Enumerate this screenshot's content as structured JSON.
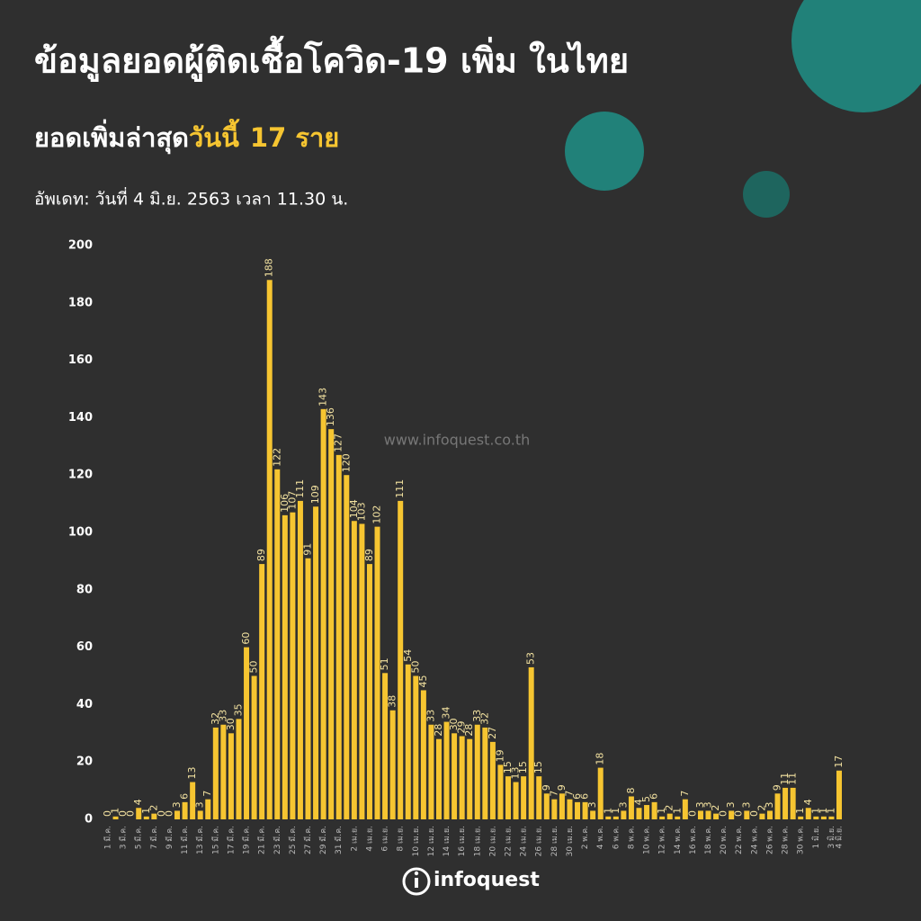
{
  "header": {
    "title": "ข้อมูลยอดผู้ติดเชื้อโควิด-19 เพิ่ม ในไทย",
    "subtitle_prefix": "ยอดเพิ่มล่าสุด",
    "subtitle_highlight": "วันนี้",
    "subtitle_count": "17 ราย",
    "update": "อัพเดท: วันที่  4 มิ.ย. 2563 เวลา 11.30 น."
  },
  "watermark": "www.infoquest.co.th",
  "logo": "infoquest",
  "chart_data": {
    "type": "bar",
    "color": "#f6c531",
    "grid": false,
    "ylim": [
      0,
      200
    ],
    "yticks": [
      0,
      20,
      40,
      60,
      80,
      100,
      120,
      140,
      160,
      180,
      200
    ],
    "categories": [
      "1 มี.ค.",
      null,
      "3 มี.ค.",
      null,
      "5 มี.ค.",
      null,
      "7 มี.ค.",
      null,
      "9 มี.ค.",
      null,
      "11 มี.ค.",
      null,
      "13 มี.ค.",
      null,
      "15 มี.ค.",
      null,
      "17 มี.ค.",
      null,
      "19 มี.ค.",
      null,
      "21 มี.ค.",
      null,
      "23 มี.ค.",
      null,
      "25 มี.ค.",
      null,
      "27 มี.ค.",
      null,
      "29 มี.ค.",
      null,
      "31 มี.ค.",
      null,
      "2 เม.ย.",
      null,
      "4 เม.ย.",
      null,
      "6 เม.ย.",
      null,
      "8 เม.ย.",
      null,
      "10 เม.ย.",
      null,
      "12 เม.ย.",
      null,
      "14 เม.ย.",
      null,
      "16 เม.ย.",
      null,
      "18 เม.ย.",
      null,
      "20 เม.ย.",
      null,
      "22 เม.ย.",
      null,
      "24 เม.ย.",
      null,
      "26 เม.ย.",
      null,
      "28 เม.ย.",
      null,
      "30 เม.ย.",
      null,
      "2 พ.ค.",
      null,
      "4 พ.ค.",
      null,
      "6 พ.ค.",
      null,
      "8 พ.ค.",
      null,
      "10 พ.ค.",
      null,
      "12 พ.ค.",
      null,
      "14 พ.ค.",
      null,
      "16 พ.ค.",
      null,
      "18 พ.ค.",
      null,
      "20 พ.ค.",
      null,
      "22 พ.ค.",
      null,
      "24 พ.ค.",
      null,
      "26 พ.ค.",
      null,
      "28 พ.ค.",
      null,
      "30 พ.ค.",
      null,
      "1 มิ.ย.",
      null,
      "3 มิ.ย.",
      "4 มิ.ย."
    ],
    "values": [
      0,
      1,
      0,
      0,
      4,
      1,
      2,
      0,
      0,
      3,
      6,
      13,
      3,
      7,
      32,
      33,
      30,
      35,
      60,
      50,
      89,
      188,
      122,
      106,
      107,
      111,
      91,
      109,
      143,
      136,
      127,
      120,
      104,
      103,
      89,
      102,
      51,
      38,
      111,
      54,
      50,
      45,
      33,
      28,
      34,
      30,
      29,
      28,
      33,
      32,
      27,
      19,
      15,
      13,
      15,
      53,
      15,
      9,
      7,
      9,
      7,
      6,
      6,
      3,
      18,
      1,
      1,
      3,
      8,
      4,
      5,
      6,
      1,
      2,
      1,
      7,
      0,
      3,
      3,
      2,
      0,
      3,
      0,
      3,
      0,
      2,
      3,
      9,
      11,
      11,
      1,
      4,
      1,
      1,
      1,
      17
    ]
  }
}
